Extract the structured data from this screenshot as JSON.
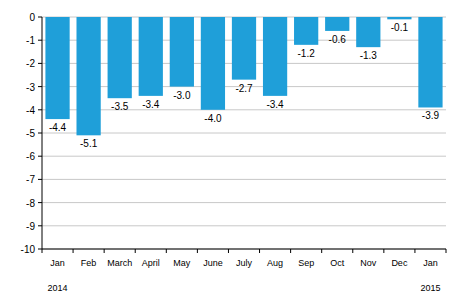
{
  "chart_data": {
    "type": "bar",
    "categories": [
      "Jan",
      "Feb",
      "March",
      "April",
      "May",
      "June",
      "July",
      "Aug",
      "Sep",
      "Oct",
      "Nov",
      "Dec",
      "Jan"
    ],
    "values": [
      -4.4,
      -5.1,
      -3.5,
      -3.4,
      -3.0,
      -4.0,
      -2.7,
      -3.4,
      -1.2,
      -0.6,
      -1.3,
      -0.1,
      -3.9
    ],
    "value_labels": [
      "-4.4",
      "-5.1",
      "-3.5",
      "-3.4",
      "-3.0",
      "-4.0",
      "-2.7",
      "-3.4",
      "-1.2",
      "-0.6",
      "-1.3",
      "-0.1",
      "-3.9"
    ],
    "color": "#1f9fd9",
    "ylim": [
      -10,
      0
    ],
    "yticks": [
      0,
      -1,
      -2,
      -3,
      -4,
      -5,
      -6,
      -7,
      -8,
      -9,
      -10
    ],
    "grid": true,
    "data_labels": true,
    "annotations": [
      "2014",
      "2015"
    ]
  }
}
